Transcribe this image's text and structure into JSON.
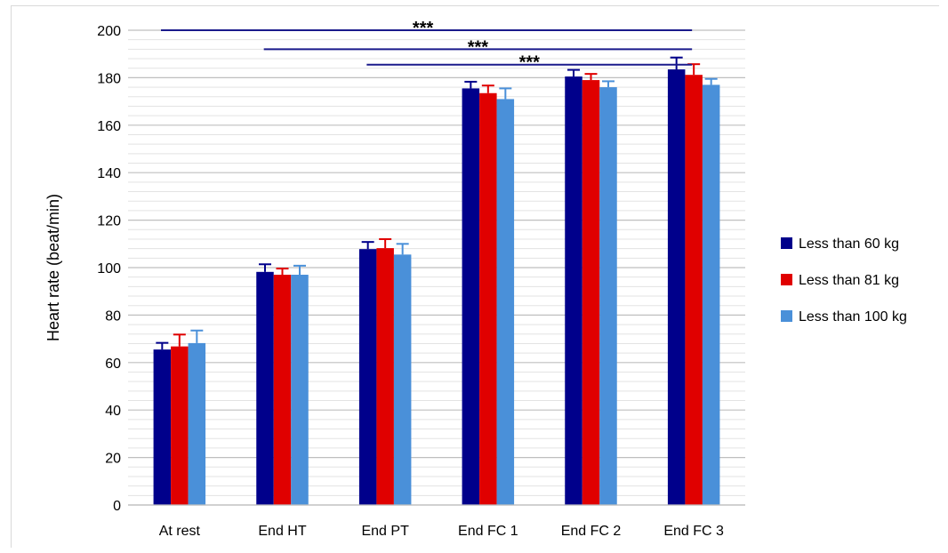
{
  "chart_data": {
    "type": "bar",
    "categories": [
      "At rest",
      "End HT",
      "End PT",
      "End FC 1",
      "End FC 2",
      "End FC 3"
    ],
    "series": [
      {
        "name": "Less than 60 kg",
        "color": "#00008B",
        "values": [
          65.5,
          98.2,
          107.8,
          175.5,
          180.5,
          183.5
        ],
        "errors": [
          2.8,
          3.2,
          3.0,
          2.8,
          2.8,
          5.0
        ]
      },
      {
        "name": "Less than 81 kg",
        "color": "#E00000",
        "values": [
          66.8,
          97.0,
          108.2,
          173.5,
          179.0,
          181.2
        ],
        "errors": [
          5.0,
          2.6,
          3.8,
          3.2,
          2.6,
          4.5
        ]
      },
      {
        "name": "Less than 100 kg",
        "color": "#4A90D9",
        "values": [
          68.2,
          97.0,
          105.5,
          171.0,
          176.0,
          177.0
        ],
        "errors": [
          5.3,
          3.8,
          4.5,
          4.5,
          2.5,
          2.5
        ]
      }
    ],
    "title": "",
    "xlabel": "",
    "ylabel": "Heart rate (beat/min)",
    "ylim": [
      0,
      200
    ],
    "yticks": [
      "0",
      "20",
      "40",
      "60",
      "80",
      "100",
      "120",
      "140",
      "160",
      "180",
      "200"
    ],
    "grid": true,
    "legend_position": "right",
    "significance": [
      {
        "label": "***",
        "from": "At rest",
        "to": "End FC 3",
        "y": 200
      },
      {
        "label": "***",
        "from": "End HT",
        "to": "End FC 3",
        "y": 192
      },
      {
        "label": "***",
        "from": "End PT",
        "to": "End FC 3",
        "y": 185.5
      }
    ]
  }
}
